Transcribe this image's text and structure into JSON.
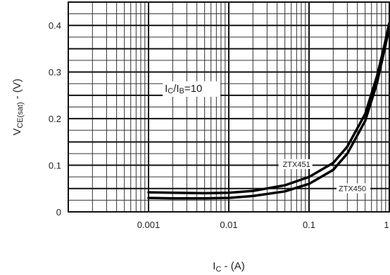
{
  "chart_data": {
    "type": "line",
    "title": "",
    "x_scale": "log",
    "xlim": [
      0.0001,
      1
    ],
    "ylim": [
      0,
      0.45
    ],
    "grid": true,
    "xlabel": {
      "main": "I",
      "sub": "C",
      "rest": " - (A)"
    },
    "ylabel": {
      "main": "V",
      "sub": "CE(sat)",
      "rest": " - (V)"
    },
    "x_ticks": [
      {
        "value": 0.001,
        "label": "0.001"
      },
      {
        "value": 0.01,
        "label": "0.01"
      },
      {
        "value": 0.1,
        "label": "0.1"
      },
      {
        "value": 1,
        "label": "1"
      }
    ],
    "y_ticks": [
      {
        "value": 0,
        "label": "0"
      },
      {
        "value": 0.1,
        "label": "0.1"
      },
      {
        "value": 0.2,
        "label": "0.2"
      },
      {
        "value": 0.3,
        "label": "0.3"
      },
      {
        "value": 0.4,
        "label": "0.4"
      }
    ],
    "condition": {
      "a": "I",
      "a_sub": "C",
      "mid": "/I",
      "b_sub": "B",
      "rest": "=10"
    },
    "series": [
      {
        "name": "ZTX451",
        "points": [
          [
            0.001,
            0.042
          ],
          [
            0.002,
            0.041
          ],
          [
            0.005,
            0.04
          ],
          [
            0.01,
            0.041
          ],
          [
            0.02,
            0.045
          ],
          [
            0.05,
            0.057
          ],
          [
            0.1,
            0.075
          ],
          [
            0.2,
            0.105
          ],
          [
            0.3,
            0.14
          ],
          [
            0.5,
            0.21
          ],
          [
            0.7,
            0.29
          ],
          [
            0.85,
            0.35
          ],
          [
            1.0,
            0.405
          ]
        ]
      },
      {
        "name": "ZTX450",
        "points": [
          [
            0.001,
            0.03
          ],
          [
            0.002,
            0.029
          ],
          [
            0.005,
            0.029
          ],
          [
            0.01,
            0.03
          ],
          [
            0.02,
            0.034
          ],
          [
            0.05,
            0.044
          ],
          [
            0.1,
            0.06
          ],
          [
            0.2,
            0.09
          ],
          [
            0.3,
            0.125
          ],
          [
            0.5,
            0.195
          ],
          [
            0.7,
            0.275
          ],
          [
            0.85,
            0.34
          ],
          [
            1.0,
            0.395
          ]
        ]
      }
    ]
  }
}
